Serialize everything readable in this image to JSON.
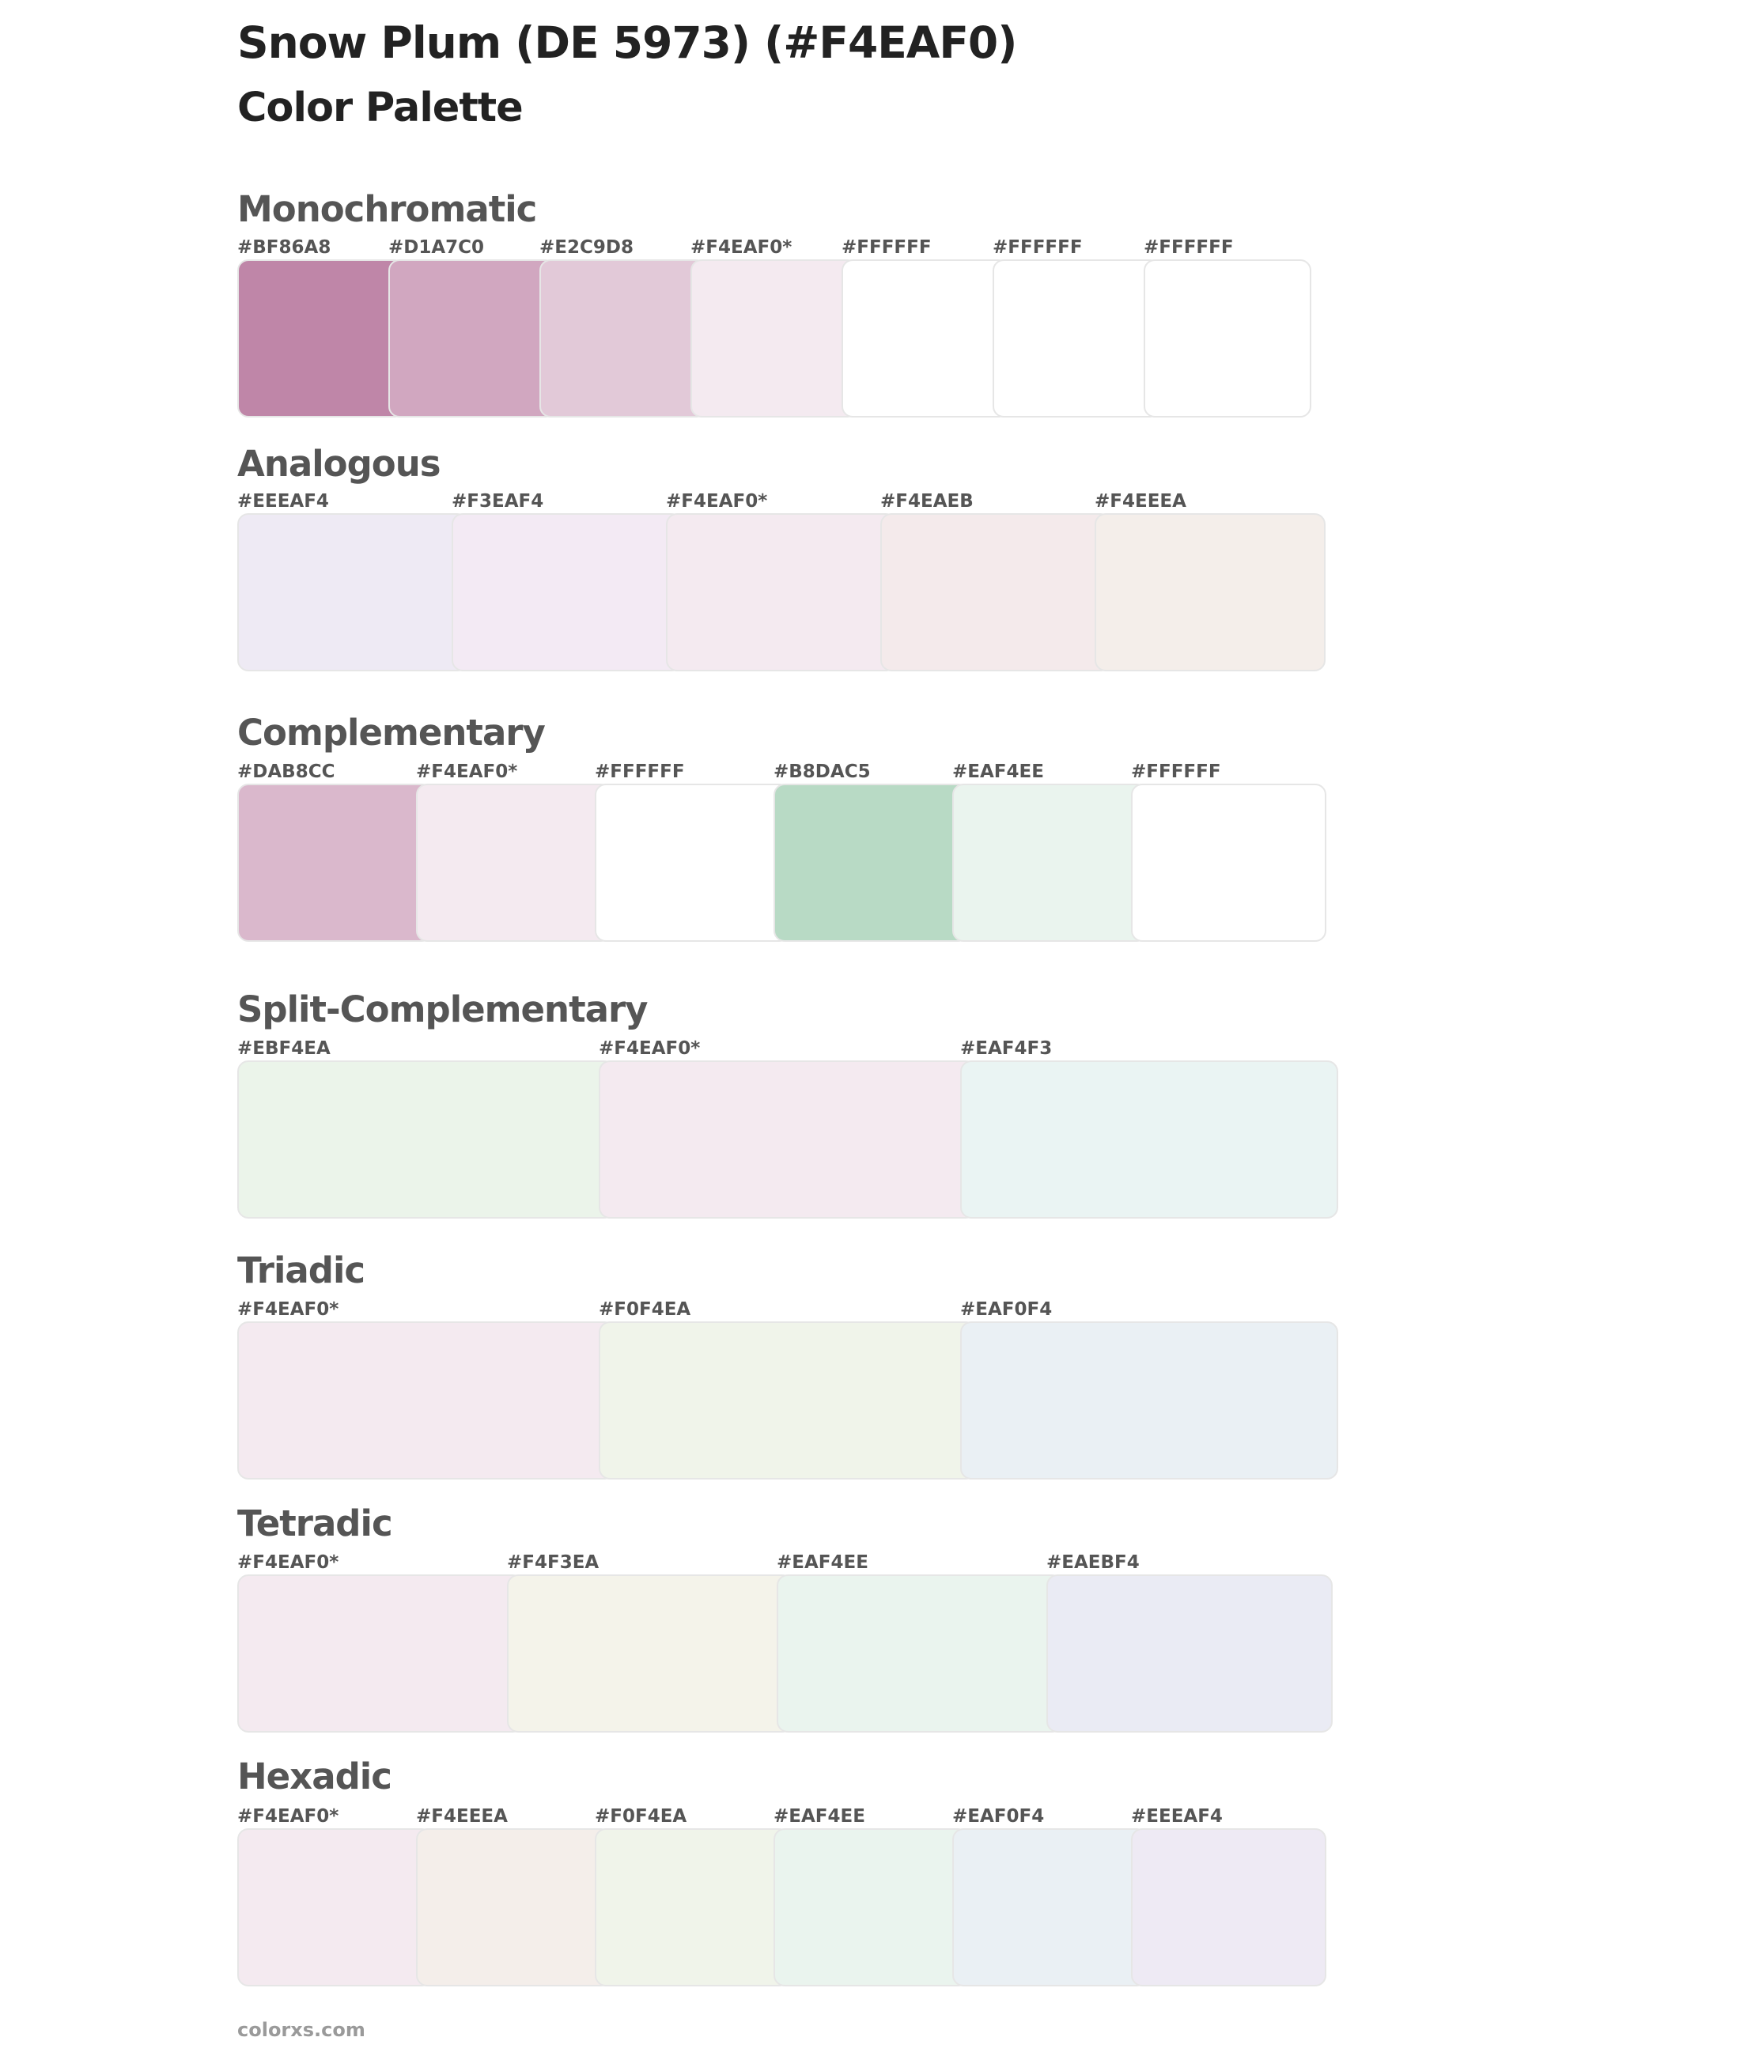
{
  "title": "Snow Plum (DE 5973) (#F4EAF0)",
  "subtitle": "Color Palette",
  "footer": "colorxs.com",
  "sections": [
    {
      "name": "Monochromatic",
      "swatches": [
        {
          "label": "#BF86A8",
          "color": "#BF86A8"
        },
        {
          "label": "#D1A7C0",
          "color": "#D1A7C0"
        },
        {
          "label": "#E2C9D8",
          "color": "#E2C9D8"
        },
        {
          "label": "#F4EAF0*",
          "color": "#F4EAF0"
        },
        {
          "label": "#FFFFFF",
          "color": "#FFFFFF"
        },
        {
          "label": "#FFFFFF",
          "color": "#FFFFFF"
        },
        {
          "label": "#FFFFFF",
          "color": "#FFFFFF"
        }
      ]
    },
    {
      "name": "Analogous",
      "swatches": [
        {
          "label": "#EEEAF4",
          "color": "#EEEAF4"
        },
        {
          "label": "#F3EAF4",
          "color": "#F3EAF4"
        },
        {
          "label": "#F4EAF0*",
          "color": "#F4EAF0"
        },
        {
          "label": "#F4EAEB",
          "color": "#F4EAEB"
        },
        {
          "label": "#F4EEEA",
          "color": "#F4EEEA"
        }
      ]
    },
    {
      "name": "Complementary",
      "swatches": [
        {
          "label": "#DAB8CC",
          "color": "#DAB8CC"
        },
        {
          "label": "#F4EAF0*",
          "color": "#F4EAF0"
        },
        {
          "label": "#FFFFFF",
          "color": "#FFFFFF"
        },
        {
          "label": "#B8DAC5",
          "color": "#B8DAC5"
        },
        {
          "label": "#EAF4EE",
          "color": "#EAF4EE"
        },
        {
          "label": "#FFFFFF",
          "color": "#FFFFFF"
        }
      ]
    },
    {
      "name": "Split-Complementary",
      "swatches": [
        {
          "label": "#EBF4EA",
          "color": "#EBF4EA"
        },
        {
          "label": "#F4EAF0*",
          "color": "#F4EAF0"
        },
        {
          "label": "#EAF4F3",
          "color": "#EAF4F3"
        }
      ]
    },
    {
      "name": "Triadic",
      "swatches": [
        {
          "label": "#F4EAF0*",
          "color": "#F4EAF0"
        },
        {
          "label": "#F0F4EA",
          "color": "#F0F4EA"
        },
        {
          "label": "#EAF0F4",
          "color": "#EAF0F4"
        }
      ]
    },
    {
      "name": "Tetradic",
      "swatches": [
        {
          "label": "#F4EAF0*",
          "color": "#F4EAF0"
        },
        {
          "label": "#F4F3EA",
          "color": "#F4F3EA"
        },
        {
          "label": "#EAF4EE",
          "color": "#EAF4EE"
        },
        {
          "label": "#EAEBF4",
          "color": "#EAEBF4"
        }
      ]
    },
    {
      "name": "Hexadic",
      "swatches": [
        {
          "label": "#F4EAF0*",
          "color": "#F4EAF0"
        },
        {
          "label": "#F4EEEA",
          "color": "#F4EEEA"
        },
        {
          "label": "#F0F4EA",
          "color": "#F0F4EA"
        },
        {
          "label": "#EAF4EE",
          "color": "#EAF4EE"
        },
        {
          "label": "#EAF0F4",
          "color": "#EAF0F4"
        },
        {
          "label": "#EEEAF4",
          "color": "#EEEAF4"
        }
      ]
    }
  ]
}
